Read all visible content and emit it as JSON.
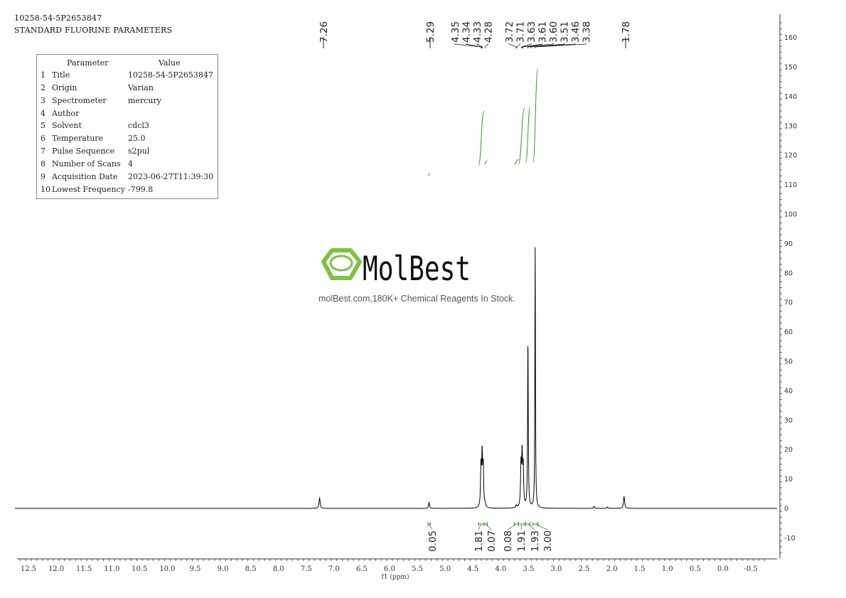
{
  "header": {
    "line1": "10258-54-5P2653847",
    "line2": "STANDARD FLUORINE PARAMETERS"
  },
  "parameters": {
    "col_param": "Parameter",
    "col_value": "Value",
    "rows": [
      {
        "idx": "1",
        "name": "Title",
        "value": "10258-54-5P2653847"
      },
      {
        "idx": "2",
        "name": "Origin",
        "value": "Varian"
      },
      {
        "idx": "3",
        "name": "Spectrometer",
        "value": "mercury"
      },
      {
        "idx": "4",
        "name": "Author",
        "value": ""
      },
      {
        "idx": "5",
        "name": "Solvent",
        "value": "cdcl3"
      },
      {
        "idx": "6",
        "name": "Temperature",
        "value": "25.0"
      },
      {
        "idx": "7",
        "name": "Pulse Sequence",
        "value": "s2pul"
      },
      {
        "idx": "8",
        "name": "Number of Scans",
        "value": "4"
      },
      {
        "idx": "9",
        "name": "Acquisition Date",
        "value": "2023-06-27T11:39:30"
      },
      {
        "idx": "10",
        "name": "Lowest Frequency",
        "value": "-799.8"
      }
    ]
  },
  "watermark": {
    "brand": "MolBest",
    "tagline": "molBest.com,180K+ Chemical Reagents In Stock."
  },
  "colors": {
    "spectrum": "#000000",
    "integral": "#3a9a2a",
    "logo": "#7dc242"
  },
  "chart_data": {
    "type": "line",
    "xlabel": "f1 (ppm)",
    "xlim": [
      12.8,
      -0.9
    ],
    "x_reversed": true,
    "ylim": [
      -17,
      167
    ],
    "x_ticks": [
      "12.5",
      "12.0",
      "11.5",
      "11.0",
      "10.5",
      "10.0",
      "9.5",
      "9.0",
      "8.5",
      "8.0",
      "7.5",
      "7.0",
      "6.5",
      "6.0",
      "5.5",
      "5.0",
      "4.5",
      "4.0",
      "3.5",
      "3.0",
      "2.5",
      "2.0",
      "1.5",
      "1.0",
      "0.5",
      "0.0",
      "-0.5"
    ],
    "y_ticks": [
      "160",
      "150",
      "140",
      "130",
      "120",
      "110",
      "100",
      "90",
      "80",
      "70",
      "60",
      "50",
      "40",
      "30",
      "20",
      "10",
      "0",
      "-10"
    ],
    "peaks": [
      {
        "ppm": 7.26,
        "height": 3.5,
        "width": 0.012
      },
      {
        "ppm": 5.29,
        "height": 2.0,
        "width": 0.01
      },
      {
        "ppm": 4.355,
        "height": 13.5,
        "width": 0.009
      },
      {
        "ppm": 4.335,
        "height": 17.0,
        "width": 0.009
      },
      {
        "ppm": 4.315,
        "height": 13.5,
        "width": 0.009
      },
      {
        "ppm": 4.28,
        "height": 1.0,
        "width": 0.01
      },
      {
        "ppm": 3.72,
        "height": 0.8,
        "width": 0.01
      },
      {
        "ppm": 3.635,
        "height": 14.0,
        "width": 0.009
      },
      {
        "ppm": 3.615,
        "height": 17.0,
        "width": 0.009
      },
      {
        "ppm": 3.595,
        "height": 13.0,
        "width": 0.009
      },
      {
        "ppm": 3.51,
        "height": 56.5,
        "width": 0.007
      },
      {
        "ppm": 3.38,
        "height": 88.5,
        "width": 0.006
      },
      {
        "ppm": 2.32,
        "height": 0.7,
        "width": 0.01
      },
      {
        "ppm": 2.08,
        "height": 0.5,
        "width": 0.01
      },
      {
        "ppm": 1.78,
        "height": 4.0,
        "width": 0.012
      }
    ],
    "peak_labels": [
      {
        "label": "7.26",
        "ppm": 7.26
      },
      {
        "label": "5.29",
        "ppm": 5.29
      },
      {
        "label": "4.35",
        "ppm": 4.35
      },
      {
        "label": "4.34",
        "ppm": 4.34
      },
      {
        "label": "4.33",
        "ppm": 4.33
      },
      {
        "label": "4.28",
        "ppm": 4.28
      },
      {
        "label": "3.72",
        "ppm": 3.72
      },
      {
        "label": "3.71",
        "ppm": 3.71
      },
      {
        "label": "3.63",
        "ppm": 3.63
      },
      {
        "label": "3.61",
        "ppm": 3.61
      },
      {
        "label": "3.60",
        "ppm": 3.6
      },
      {
        "label": "3.51",
        "ppm": 3.51
      },
      {
        "label": "3.46",
        "ppm": 3.46
      },
      {
        "label": "3.38",
        "ppm": 3.38
      },
      {
        "label": "1.78",
        "ppm": 1.78
      }
    ],
    "integrals": [
      {
        "value": "0.05",
        "from": 5.31,
        "to": 5.27
      },
      {
        "value": "1.81",
        "from": 4.4,
        "to": 4.3
      },
      {
        "value": "0.07",
        "from": 4.3,
        "to": 4.24
      },
      {
        "value": "0.08",
        "from": 3.76,
        "to": 3.68
      },
      {
        "value": "1.91",
        "from": 3.68,
        "to": 3.57
      },
      {
        "value": "1.93",
        "from": 3.55,
        "to": 3.47
      },
      {
        "value": "3.00",
        "from": 3.42,
        "to": 3.33
      }
    ]
  }
}
